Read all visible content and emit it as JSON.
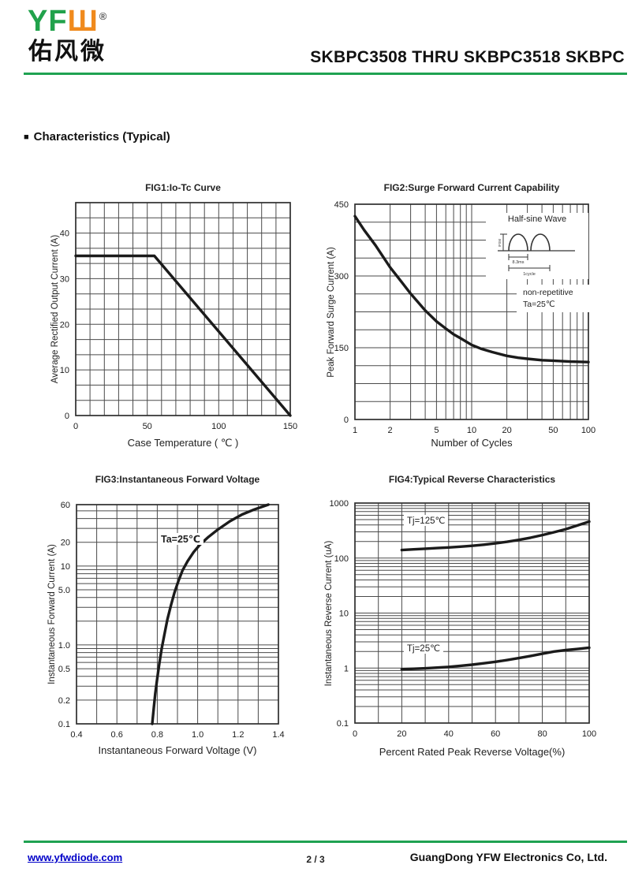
{
  "colors": {
    "accent_green": "#1fa251",
    "logo_green": "#21a24b",
    "logo_orange": "#f08a1d",
    "link_blue": "#0000c8",
    "curve": "#1b1b1b",
    "grid": "#4a4a4a"
  },
  "header": {
    "logo": {
      "latin_green": "YF",
      "latin_orange": "Ш",
      "registered": "®",
      "chinese": "佑风微"
    },
    "doc_title": "SKBPC3508 THRU SKBPC3518 SKBPC"
  },
  "section": {
    "bullet": "■",
    "heading": "Characteristics (Typical)"
  },
  "chart_data": [
    {
      "id": "fig1",
      "type": "line",
      "title": "FIG1:Io-Tc Curve",
      "xlabel": "Case Temperature ( ℃ )",
      "ylabel": "Average Rectified Output Current (A)",
      "x_axis": {
        "scale": "linear",
        "min": 0,
        "max": 150,
        "grid_step": 10,
        "ticks": [
          0,
          50,
          100,
          150
        ],
        "tick_labels": [
          "0",
          "50",
          "100",
          "150"
        ]
      },
      "y_axis": {
        "scale": "linear",
        "min": 0,
        "max": 46.667,
        "grid_step": 3.3333,
        "ticks": [
          0,
          10,
          20,
          30,
          40
        ],
        "tick_labels": [
          "0",
          "10",
          "20",
          "30",
          "40"
        ]
      },
      "series": [
        {
          "name": "Io vs Tc",
          "points": [
            [
              0,
              35
            ],
            [
              55,
              35
            ],
            [
              150,
              0
            ]
          ]
        }
      ]
    },
    {
      "id": "fig2",
      "type": "line",
      "title": "FIG2:Surge Forward Current Capability",
      "xlabel": "Number of Cycles",
      "ylabel": "Peak Forward Surge Current (A)",
      "x_axis": {
        "scale": "log",
        "min": 1,
        "max": 100,
        "ticks": [
          1,
          2,
          5,
          10,
          20,
          50,
          100
        ],
        "tick_labels": [
          "1",
          "2",
          "5",
          "10",
          "20",
          "50",
          "100"
        ]
      },
      "y_axis": {
        "scale": "linear",
        "min": 0,
        "max": 450,
        "grid_step": 37.5,
        "ticks": [
          0,
          150,
          300,
          450
        ],
        "tick_labels": [
          "0",
          "150",
          "300",
          "450"
        ]
      },
      "series": [
        {
          "name": "surge",
          "points": [
            [
              1,
              425
            ],
            [
              1.2,
              396
            ],
            [
              1.5,
              364
            ],
            [
              2,
              318
            ],
            [
              2.5,
              288
            ],
            [
              3,
              263
            ],
            [
              4,
              228
            ],
            [
              5,
              205
            ],
            [
              6,
              190
            ],
            [
              7,
              178
            ],
            [
              8,
              170
            ],
            [
              10,
              156
            ],
            [
              12,
              148
            ],
            [
              15,
              141
            ],
            [
              20,
              133
            ],
            [
              25,
              129
            ],
            [
              30,
              127
            ],
            [
              40,
              124
            ],
            [
              50,
              123
            ],
            [
              70,
              121
            ],
            [
              100,
              120
            ]
          ]
        }
      ],
      "inset": {
        "wave_label": "Half-sine Wave",
        "peak_label": "IFSM",
        "dim1": "8.3ms",
        "dim2": "1cycle",
        "note_line1": "non-repetitive",
        "note_line2": "Ta=25℃"
      }
    },
    {
      "id": "fig3",
      "type": "line",
      "title": "FIG3:Instantaneous Forward Voltage",
      "xlabel": "Instantaneous Forward Voltage (V)",
      "ylabel": "Instantaneous Forward Current (A)",
      "annotation": "Ta=25℃",
      "x_axis": {
        "scale": "linear",
        "min": 0.4,
        "max": 1.4,
        "grid_step": 0.1,
        "ticks": [
          0.4,
          0.6,
          0.8,
          1.0,
          1.2,
          1.4
        ],
        "tick_labels": [
          "0.4",
          "0.6",
          "0.8",
          "1.0",
          "1.2",
          "1.4"
        ]
      },
      "y_axis": {
        "scale": "log",
        "min": 0.1,
        "max": 60,
        "ticks": [
          60,
          20,
          10,
          5,
          1,
          0.5,
          0.2,
          0.1
        ],
        "tick_labels": [
          "60",
          "20",
          "10",
          "5.0",
          "1.0",
          "0.5",
          "0.2",
          "0.1"
        ]
      },
      "series": [
        {
          "name": "VF",
          "points": [
            [
              0.775,
              0.1
            ],
            [
              0.783,
              0.16
            ],
            [
              0.79,
              0.24
            ],
            [
              0.8,
              0.38
            ],
            [
              0.81,
              0.58
            ],
            [
              0.822,
              0.9
            ],
            [
              0.835,
              1.35
            ],
            [
              0.85,
              2.1
            ],
            [
              0.868,
              3.2
            ],
            [
              0.885,
              4.6
            ],
            [
              0.905,
              6.5
            ],
            [
              0.925,
              8.8
            ],
            [
              0.95,
              11.5
            ],
            [
              0.98,
              15
            ],
            [
              1.01,
              18.5
            ],
            [
              1.05,
              23
            ],
            [
              1.1,
              29
            ],
            [
              1.16,
              37
            ],
            [
              1.22,
              45
            ],
            [
              1.28,
              52
            ],
            [
              1.35,
              60
            ]
          ]
        }
      ]
    },
    {
      "id": "fig4",
      "type": "line",
      "title": "FIG4:Typical Reverse Characteristics",
      "xlabel": "Percent Rated Peak Reverse Voltage(%)",
      "ylabel": "Instantaneous Reverse Current (uA)",
      "x_axis": {
        "scale": "linear",
        "min": 0,
        "max": 100,
        "grid_step": 10,
        "ticks": [
          0,
          20,
          40,
          60,
          80,
          100
        ],
        "tick_labels": [
          "0",
          "20",
          "40",
          "60",
          "80",
          "100"
        ]
      },
      "y_axis": {
        "scale": "log",
        "min": 0.1,
        "max": 1000,
        "ticks": [
          1000,
          100,
          10,
          1,
          0.1
        ],
        "tick_labels": [
          "1000",
          "100",
          "10",
          "1",
          "0.1"
        ]
      },
      "series": [
        {
          "name": "Tj125",
          "label": "Tj=125℃",
          "points": [
            [
              20,
              140
            ],
            [
              25,
              144
            ],
            [
              30,
              148
            ],
            [
              35,
              152
            ],
            [
              40,
              156
            ],
            [
              45,
              161
            ],
            [
              50,
              167
            ],
            [
              55,
              175
            ],
            [
              60,
              185
            ],
            [
              65,
              198
            ],
            [
              70,
              214
            ],
            [
              75,
              235
            ],
            [
              80,
              262
            ],
            [
              85,
              295
            ],
            [
              90,
              335
            ],
            [
              95,
              392
            ],
            [
              100,
              460
            ]
          ]
        },
        {
          "name": "Tj25",
          "label": "Tj=25℃",
          "points": [
            [
              20,
              0.95
            ],
            [
              25,
              0.97
            ],
            [
              30,
              0.99
            ],
            [
              35,
              1.02
            ],
            [
              40,
              1.05
            ],
            [
              45,
              1.1
            ],
            [
              50,
              1.15
            ],
            [
              55,
              1.22
            ],
            [
              60,
              1.3
            ],
            [
              65,
              1.4
            ],
            [
              70,
              1.52
            ],
            [
              75,
              1.66
            ],
            [
              80,
              1.82
            ],
            [
              85,
              2.0
            ],
            [
              90,
              2.12
            ],
            [
              95,
              2.22
            ],
            [
              100,
              2.35
            ]
          ]
        }
      ]
    }
  ],
  "footer": {
    "website": "www.yfwdiode.com",
    "page": "2 / 3",
    "company": "GuangDong YFW Electronics Co, Ltd."
  }
}
